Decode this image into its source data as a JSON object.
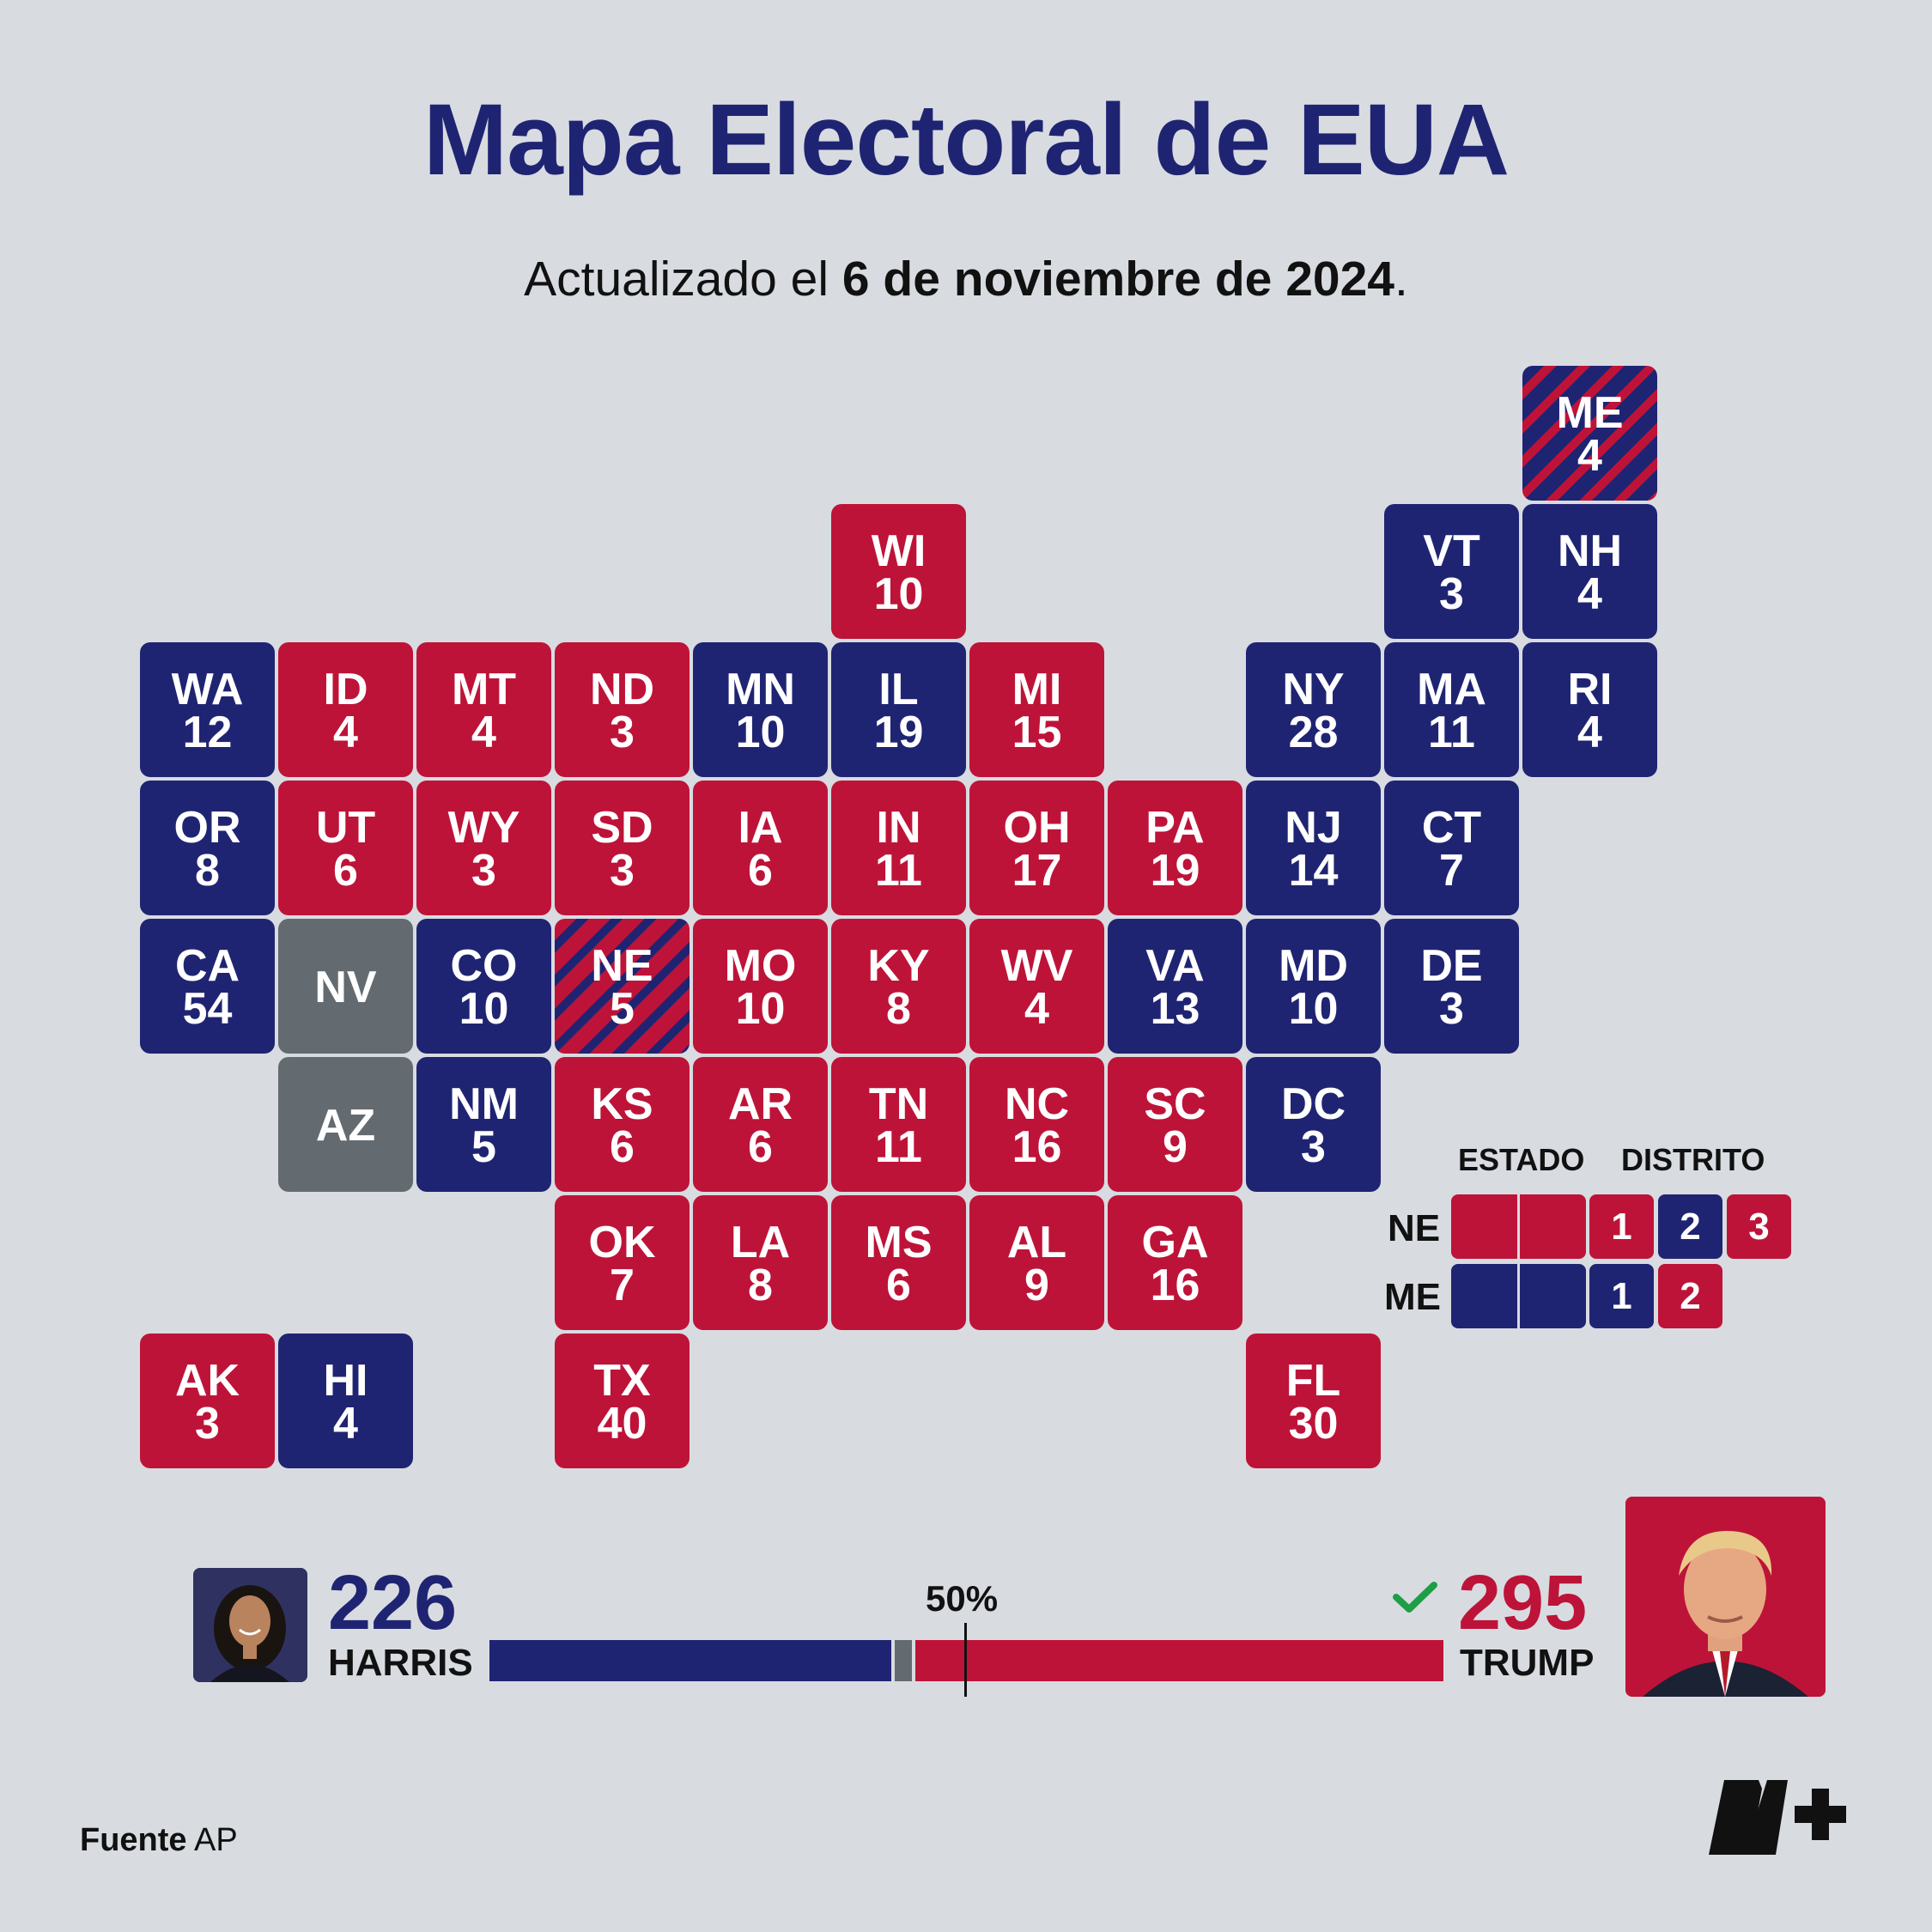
{
  "title": "Mapa Electoral de EUA",
  "subtitle": {
    "prefix": "Actualizado el ",
    "date": "6 de noviembre de 2024",
    "suffix": "."
  },
  "colors": {
    "dem": "#1f2472",
    "rep": "#be1338",
    "pending": "#646b70",
    "background": "#d8dce1"
  },
  "states": [
    {
      "abbr": "ME",
      "votes": "4",
      "status": "split-dem",
      "row": 0,
      "col": 10
    },
    {
      "abbr": "WI",
      "votes": "10",
      "status": "rep",
      "row": 1,
      "col": 5
    },
    {
      "abbr": "VT",
      "votes": "3",
      "status": "dem",
      "row": 1,
      "col": 9
    },
    {
      "abbr": "NH",
      "votes": "4",
      "status": "dem",
      "row": 1,
      "col": 10
    },
    {
      "abbr": "WA",
      "votes": "12",
      "status": "dem",
      "row": 2,
      "col": 0
    },
    {
      "abbr": "ID",
      "votes": "4",
      "status": "rep",
      "row": 2,
      "col": 1
    },
    {
      "abbr": "MT",
      "votes": "4",
      "status": "rep",
      "row": 2,
      "col": 2
    },
    {
      "abbr": "ND",
      "votes": "3",
      "status": "rep",
      "row": 2,
      "col": 3
    },
    {
      "abbr": "MN",
      "votes": "10",
      "status": "dem",
      "row": 2,
      "col": 4
    },
    {
      "abbr": "IL",
      "votes": "19",
      "status": "dem",
      "row": 2,
      "col": 5
    },
    {
      "abbr": "MI",
      "votes": "15",
      "status": "rep",
      "row": 2,
      "col": 6
    },
    {
      "abbr": "NY",
      "votes": "28",
      "status": "dem",
      "row": 2,
      "col": 8
    },
    {
      "abbr": "MA",
      "votes": "11",
      "status": "dem",
      "row": 2,
      "col": 9
    },
    {
      "abbr": "RI",
      "votes": "4",
      "status": "dem",
      "row": 2,
      "col": 10
    },
    {
      "abbr": "OR",
      "votes": "8",
      "status": "dem",
      "row": 3,
      "col": 0
    },
    {
      "abbr": "UT",
      "votes": "6",
      "status": "rep",
      "row": 3,
      "col": 1
    },
    {
      "abbr": "WY",
      "votes": "3",
      "status": "rep",
      "row": 3,
      "col": 2
    },
    {
      "abbr": "SD",
      "votes": "3",
      "status": "rep",
      "row": 3,
      "col": 3
    },
    {
      "abbr": "IA",
      "votes": "6",
      "status": "rep",
      "row": 3,
      "col": 4
    },
    {
      "abbr": "IN",
      "votes": "11",
      "status": "rep",
      "row": 3,
      "col": 5
    },
    {
      "abbr": "OH",
      "votes": "17",
      "status": "rep",
      "row": 3,
      "col": 6
    },
    {
      "abbr": "PA",
      "votes": "19",
      "status": "rep",
      "row": 3,
      "col": 7
    },
    {
      "abbr": "NJ",
      "votes": "14",
      "status": "dem",
      "row": 3,
      "col": 8
    },
    {
      "abbr": "CT",
      "votes": "7",
      "status": "dem",
      "row": 3,
      "col": 9
    },
    {
      "abbr": "CA",
      "votes": "54",
      "status": "dem",
      "row": 4,
      "col": 0
    },
    {
      "abbr": "NV",
      "votes": "",
      "status": "pending",
      "row": 4,
      "col": 1
    },
    {
      "abbr": "CO",
      "votes": "10",
      "status": "dem",
      "row": 4,
      "col": 2
    },
    {
      "abbr": "NE",
      "votes": "5",
      "status": "split-rep",
      "row": 4,
      "col": 3
    },
    {
      "abbr": "MO",
      "votes": "10",
      "status": "rep",
      "row": 4,
      "col": 4
    },
    {
      "abbr": "KY",
      "votes": "8",
      "status": "rep",
      "row": 4,
      "col": 5
    },
    {
      "abbr": "WV",
      "votes": "4",
      "status": "rep",
      "row": 4,
      "col": 6
    },
    {
      "abbr": "VA",
      "votes": "13",
      "status": "dem",
      "row": 4,
      "col": 7
    },
    {
      "abbr": "MD",
      "votes": "10",
      "status": "dem",
      "row": 4,
      "col": 8
    },
    {
      "abbr": "DE",
      "votes": "3",
      "status": "dem",
      "row": 4,
      "col": 9
    },
    {
      "abbr": "AZ",
      "votes": "",
      "status": "pending",
      "row": 5,
      "col": 1
    },
    {
      "abbr": "NM",
      "votes": "5",
      "status": "dem",
      "row": 5,
      "col": 2
    },
    {
      "abbr": "KS",
      "votes": "6",
      "status": "rep",
      "row": 5,
      "col": 3
    },
    {
      "abbr": "AR",
      "votes": "6",
      "status": "rep",
      "row": 5,
      "col": 4
    },
    {
      "abbr": "TN",
      "votes": "11",
      "status": "rep",
      "row": 5,
      "col": 5
    },
    {
      "abbr": "NC",
      "votes": "16",
      "status": "rep",
      "row": 5,
      "col": 6
    },
    {
      "abbr": "SC",
      "votes": "9",
      "status": "rep",
      "row": 5,
      "col": 7
    },
    {
      "abbr": "DC",
      "votes": "3",
      "status": "dem",
      "row": 5,
      "col": 8
    },
    {
      "abbr": "OK",
      "votes": "7",
      "status": "rep",
      "row": 6,
      "col": 3
    },
    {
      "abbr": "LA",
      "votes": "8",
      "status": "rep",
      "row": 6,
      "col": 4
    },
    {
      "abbr": "MS",
      "votes": "6",
      "status": "rep",
      "row": 6,
      "col": 5
    },
    {
      "abbr": "AL",
      "votes": "9",
      "status": "rep",
      "row": 6,
      "col": 6
    },
    {
      "abbr": "GA",
      "votes": "16",
      "status": "rep",
      "row": 6,
      "col": 7
    },
    {
      "abbr": "AK",
      "votes": "3",
      "status": "rep",
      "row": 7,
      "col": 0
    },
    {
      "abbr": "HI",
      "votes": "4",
      "status": "dem",
      "row": 7,
      "col": 1
    },
    {
      "abbr": "TX",
      "votes": "40",
      "status": "rep",
      "row": 7,
      "col": 3
    },
    {
      "abbr": "FL",
      "votes": "30",
      "status": "rep",
      "row": 7,
      "col": 8
    }
  ],
  "district_legend": {
    "header_state": "ESTADO",
    "header_district": "DISTRITO",
    "rows": [
      {
        "label": "NE",
        "state_status": "rep",
        "districts": [
          {
            "n": "1",
            "status": "rep"
          },
          {
            "n": "2",
            "status": "dem"
          },
          {
            "n": "3",
            "status": "rep"
          }
        ]
      },
      {
        "label": "ME",
        "state_status": "dem",
        "districts": [
          {
            "n": "1",
            "status": "dem"
          },
          {
            "n": "2",
            "status": "rep"
          }
        ]
      }
    ]
  },
  "results": {
    "harris": {
      "total": "226",
      "name": "HARRIS"
    },
    "trump": {
      "total": "295",
      "name": "TRUMP",
      "winner": true
    },
    "threshold_label": "50%",
    "total_votes": 538,
    "pending_votes": 17
  },
  "source": {
    "label": "Fuente",
    "value": "AP"
  },
  "logo_text": "N+"
}
